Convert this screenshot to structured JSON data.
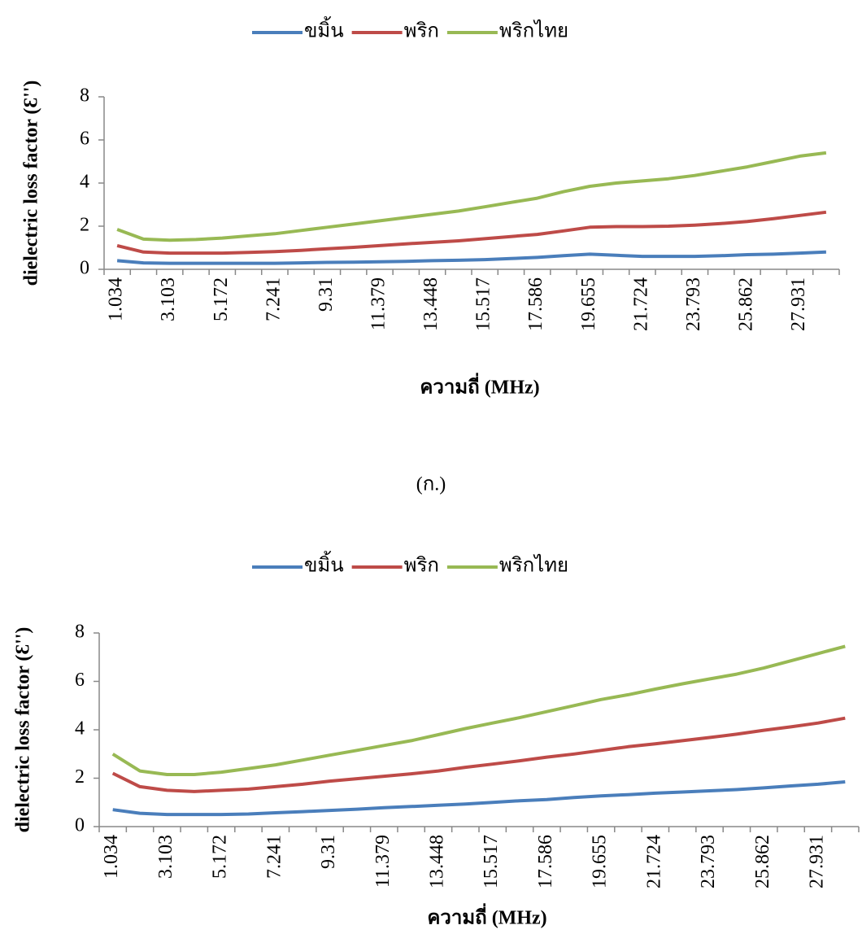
{
  "chart_data": [
    {
      "type": "line",
      "x_label": "ความถี่ (MHz)",
      "y_label": "dielectric loss factor (Ɛ'')",
      "categories": [
        "1.034",
        null,
        "3.103",
        null,
        "5.172",
        null,
        "7.241",
        null,
        "9.31",
        null,
        "11.379",
        null,
        "13.448",
        null,
        "15.517",
        null,
        "17.586",
        null,
        "19.655",
        null,
        "21.724",
        null,
        "23.793",
        null,
        "25.862",
        null,
        "27.931",
        null
      ],
      "series": [
        {
          "name": "ขมิ้น",
          "color": "#4a7ebb",
          "values": [
            0.4,
            0.3,
            0.28,
            0.28,
            0.28,
            0.28,
            0.28,
            0.3,
            0.32,
            0.33,
            0.35,
            0.37,
            0.4,
            0.42,
            0.45,
            0.5,
            0.55,
            0.63,
            0.7,
            0.65,
            0.6,
            0.6,
            0.6,
            0.63,
            0.68,
            0.7,
            0.75,
            0.8
          ]
        },
        {
          "name": "พริก",
          "color": "#be4b48",
          "values": [
            1.1,
            0.8,
            0.75,
            0.75,
            0.75,
            0.78,
            0.82,
            0.88,
            0.95,
            1.02,
            1.1,
            1.18,
            1.25,
            1.32,
            1.42,
            1.52,
            1.62,
            1.78,
            1.95,
            1.98,
            1.98,
            2.0,
            2.05,
            2.12,
            2.22,
            2.35,
            2.5,
            2.65
          ]
        },
        {
          "name": "พริกไทย",
          "color": "#98b954",
          "values": [
            1.85,
            1.4,
            1.35,
            1.38,
            1.45,
            1.55,
            1.65,
            1.8,
            1.95,
            2.1,
            2.25,
            2.4,
            2.55,
            2.7,
            2.9,
            3.1,
            3.3,
            3.6,
            3.85,
            4.0,
            4.1,
            4.2,
            4.35,
            4.55,
            4.75,
            5.0,
            5.25,
            5.4
          ]
        }
      ],
      "ylim": [
        0,
        8
      ],
      "yticks": [
        0,
        2,
        4,
        6,
        8
      ],
      "legend": "top"
    },
    {
      "type": "line",
      "x_label": "ความถี่ (MHz)",
      "y_label": "dielectric loss factor (Ɛ'')",
      "categories": [
        "1.034",
        null,
        "3.103",
        null,
        "5.172",
        null,
        "7.241",
        null,
        "9.31",
        null,
        "11.379",
        null,
        "13.448",
        null,
        "15.517",
        null,
        "17.586",
        null,
        "19.655",
        null,
        "21.724",
        null,
        "23.793",
        null,
        "25.862",
        null,
        "27.931",
        null
      ],
      "series": [
        {
          "name": "ขมิ้น",
          "color": "#4a7ebb",
          "values": [
            0.7,
            0.55,
            0.5,
            0.5,
            0.5,
            0.52,
            0.57,
            0.62,
            0.67,
            0.72,
            0.78,
            0.83,
            0.88,
            0.93,
            1.0,
            1.07,
            1.12,
            1.2,
            1.27,
            1.32,
            1.38,
            1.43,
            1.48,
            1.53,
            1.6,
            1.68,
            1.75,
            1.85
          ]
        },
        {
          "name": "พริก",
          "color": "#be4b48",
          "values": [
            2.2,
            1.65,
            1.5,
            1.45,
            1.5,
            1.55,
            1.65,
            1.75,
            1.88,
            1.98,
            2.08,
            2.18,
            2.3,
            2.45,
            2.58,
            2.72,
            2.87,
            3.0,
            3.15,
            3.3,
            3.42,
            3.55,
            3.68,
            3.82,
            3.98,
            4.12,
            4.28,
            4.48
          ]
        },
        {
          "name": "พริกไทย",
          "color": "#98b954",
          "values": [
            3.0,
            2.3,
            2.15,
            2.15,
            2.25,
            2.4,
            2.55,
            2.75,
            2.95,
            3.15,
            3.35,
            3.55,
            3.8,
            4.05,
            4.28,
            4.5,
            4.75,
            5.0,
            5.25,
            5.45,
            5.68,
            5.9,
            6.1,
            6.3,
            6.55,
            6.85,
            7.15,
            7.45
          ]
        }
      ],
      "ylim": [
        0,
        8
      ],
      "yticks": [
        0,
        2,
        4,
        6,
        8
      ],
      "legend": "top"
    }
  ],
  "caption": "(ก.)"
}
